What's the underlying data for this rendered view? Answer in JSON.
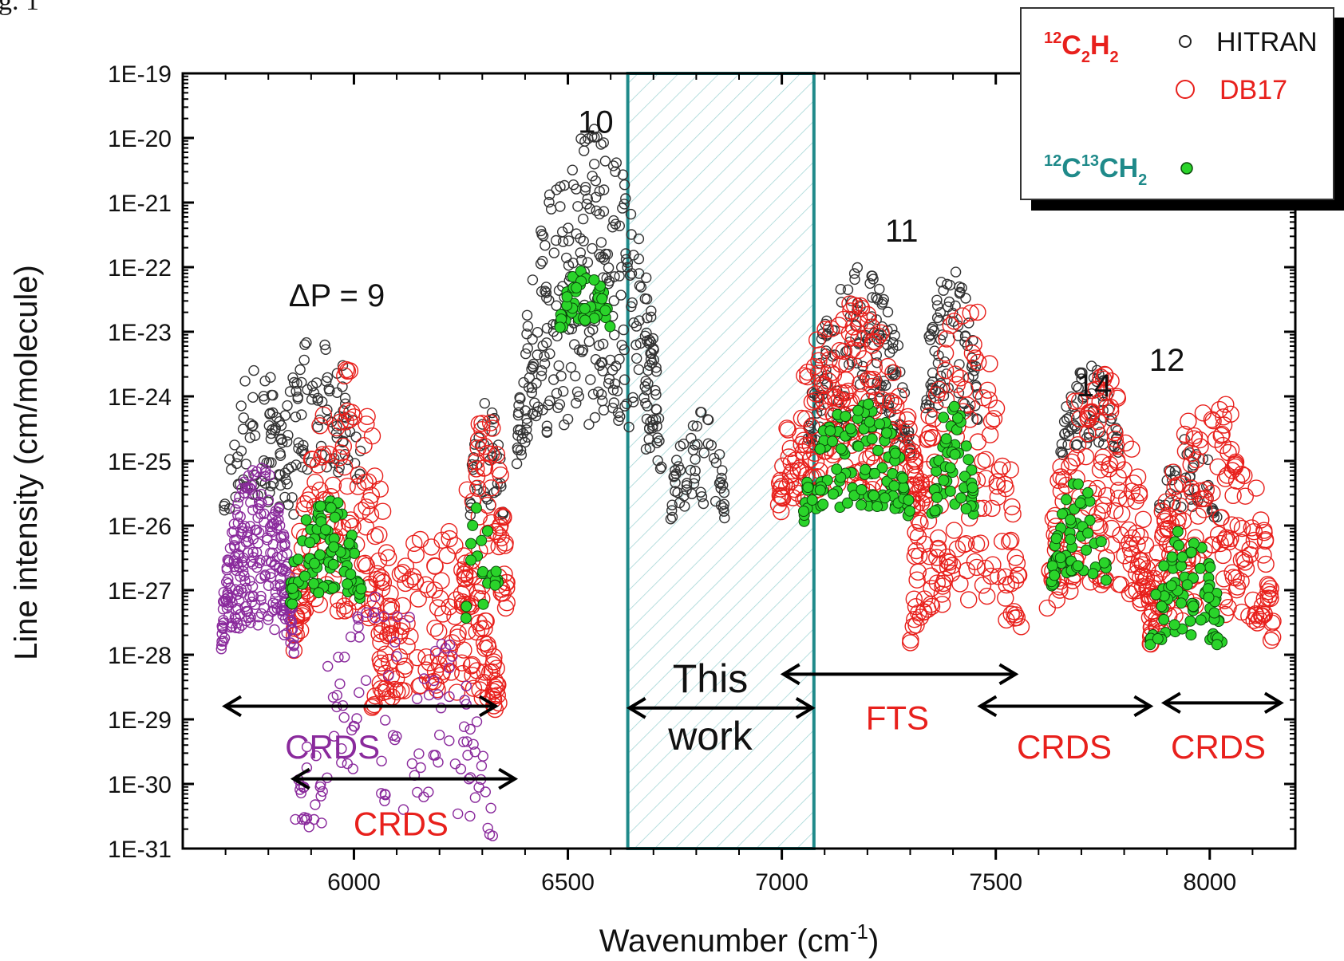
{
  "chart_data": {
    "type": "scatter",
    "header_text": "g. 1",
    "xlabel": "Wavenumber (cm",
    "xlabel_sup": "-1",
    "xlabel_close": ")",
    "ylabel": "Line intensity (cm/molecule)",
    "xlim": [
      5600,
      8200
    ],
    "ylim": [
      1e-31,
      1e-19
    ],
    "yscale": "log",
    "x_ticks": [
      6000,
      6500,
      7000,
      7500,
      8000
    ],
    "x_tick_labels": [
      "6000",
      "6500",
      "7000",
      "7500",
      "8000"
    ],
    "y_tick_labels": [
      "1E-19",
      "1E-20",
      "1E-21",
      "1E-22",
      "1E-23",
      "1E-24",
      "1E-25",
      "1E-26",
      "1E-27",
      "1E-28",
      "1E-29",
      "1E-30",
      "1E-31"
    ],
    "y_tick_values": [
      1e-19,
      1e-20,
      1e-21,
      1e-22,
      1e-23,
      1e-24,
      1e-25,
      1e-26,
      1e-27,
      1e-28,
      1e-29,
      1e-30,
      1e-31
    ],
    "legend": {
      "placement": "top-right",
      "groups": [
        {
          "molecule_base": "C",
          "molecule_parts": [
            {
              "sup": "12",
              "t": "C"
            },
            {
              "sub": "2",
              "t": "H"
            },
            {
              "sub": "2"
            }
          ],
          "entries": [
            {
              "label": "HITRAN",
              "color": "#222222",
              "marker": "open-circle-small"
            },
            {
              "label": "DB17",
              "color": "#e8201c",
              "marker": "open-circle"
            }
          ]
        },
        {
          "molecule_parts": [
            {
              "sup": "12",
              "t": "C"
            },
            {
              "sup": "13",
              "t": "CH"
            },
            {
              "sub": "2"
            }
          ],
          "entries": [
            {
              "label": "",
              "color": "#2ad42a",
              "marker": "filled-circle"
            }
          ]
        }
      ],
      "molecule1_label": "C2H2",
      "molecule2_label": "CCH2"
    },
    "series": [
      {
        "name": "HITRAN",
        "color": "#333333",
        "marker": "open",
        "clusters": [
          {
            "x0": 5695,
            "x1": 5860,
            "peak": 3e-24,
            "low": 1e-26,
            "n": 70
          },
          {
            "x0": 5820,
            "x1": 6020,
            "peak": 1e-23,
            "low": 3e-26,
            "n": 90
          },
          {
            "x0": 6270,
            "x1": 6350,
            "peak": 1e-24,
            "low": 1e-26,
            "n": 40
          },
          {
            "x0": 6380,
            "x1": 6720,
            "peak": 1.5e-20,
            "low": 5e-26,
            "n": 320
          },
          {
            "x0": 6740,
            "x1": 6870,
            "peak": 8e-25,
            "low": 1e-26,
            "n": 60
          },
          {
            "x0": 7060,
            "x1": 7300,
            "peak": 1e-22,
            "low": 1e-25,
            "n": 160
          },
          {
            "x0": 7330,
            "x1": 7460,
            "peak": 1e-22,
            "low": 3e-25,
            "n": 80
          },
          {
            "x0": 7650,
            "x1": 7790,
            "peak": 3e-24,
            "low": 1e-25,
            "n": 70
          },
          {
            "x0": 7880,
            "x1": 8020,
            "peak": 3e-25,
            "low": 1e-26,
            "n": 40
          }
        ]
      },
      {
        "name": "DB17",
        "color": "#e8201c",
        "marker": "open",
        "clusters": [
          {
            "x0": 5860,
            "x1": 6090,
            "peak": 3e-24,
            "low": 1e-28,
            "n": 150
          },
          {
            "x0": 6040,
            "x1": 6340,
            "peak": 1e-26,
            "low": 1e-29,
            "n": 150
          },
          {
            "x0": 6250,
            "x1": 6360,
            "peak": 1e-24,
            "low": 3e-28,
            "n": 60
          },
          {
            "x0": 6990,
            "x1": 7320,
            "peak": 3e-23,
            "low": 1e-26,
            "n": 220
          },
          {
            "x0": 7300,
            "x1": 7560,
            "peak": 3e-23,
            "low": 1e-28,
            "n": 160
          },
          {
            "x0": 7620,
            "x1": 7860,
            "peak": 3e-24,
            "low": 3e-28,
            "n": 160
          },
          {
            "x0": 7860,
            "x1": 8150,
            "peak": 1e-24,
            "low": 1e-28,
            "n": 200
          }
        ]
      },
      {
        "name": "CRDS",
        "color": "#8a2a9c",
        "marker": "open",
        "clusters": [
          {
            "x0": 5690,
            "x1": 5860,
            "peak": 1e-25,
            "low": 1e-28,
            "n": 260
          },
          {
            "x0": 5860,
            "x1": 6330,
            "peak": 1e-27,
            "low": 1e-31,
            "n": 120
          }
        ]
      },
      {
        "name": "13C isotopologue",
        "color": "#2ad42a",
        "marker": "filled",
        "clusters": [
          {
            "x0": 5850,
            "x1": 6020,
            "peak": 3e-26,
            "low": 5e-28,
            "n": 90
          },
          {
            "x0": 6260,
            "x1": 6340,
            "peak": 3e-26,
            "low": 3e-28,
            "n": 20
          },
          {
            "x0": 6480,
            "x1": 6600,
            "peak": 1e-22,
            "low": 1e-23,
            "n": 50
          },
          {
            "x0": 7050,
            "x1": 7300,
            "peak": 1e-24,
            "low": 1e-26,
            "n": 120
          },
          {
            "x0": 7350,
            "x1": 7450,
            "peak": 1e-24,
            "low": 1e-26,
            "n": 50
          },
          {
            "x0": 7630,
            "x1": 7760,
            "peak": 5e-26,
            "low": 1e-27,
            "n": 60
          },
          {
            "x0": 7860,
            "x1": 8030,
            "peak": 1e-26,
            "low": 1e-28,
            "n": 80
          }
        ]
      }
    ],
    "this_work_region": {
      "x0": 6640,
      "x1": 7075,
      "label_line1": "This",
      "label_line2": "work",
      "color": "#1f8a8a"
    },
    "band_labels": [
      {
        "text": "ΔP = 9",
        "x": 5960,
        "y": 2.5e-23
      },
      {
        "text": "10",
        "x": 6565,
        "y": 1.2e-20
      },
      {
        "text": "11",
        "x": 7280,
        "y": 2.5e-22
      },
      {
        "text": "14",
        "x": 7730,
        "y": 1e-24
      },
      {
        "text": "12",
        "x": 7900,
        "y": 2.5e-24
      }
    ],
    "range_annotations": [
      {
        "label": "CRDS",
        "color": "#8a2a9c",
        "x0": 5695,
        "x1": 6335,
        "y": 1.6e-29,
        "label_x": 5950,
        "label_y": 2.5e-30
      },
      {
        "label": "CRDS",
        "color": "#e8201c",
        "x0": 5855,
        "x1": 6380,
        "y": 1.2e-30,
        "label_x": 6110,
        "label_y": 1.6e-31
      },
      {
        "label": "This work",
        "color": "#111111",
        "x0": 6640,
        "x1": 7075,
        "y": 1.5e-29,
        "label_x": 0,
        "label_y": 0,
        "no_label": true
      },
      {
        "label": "FTS",
        "color": "#e8201c",
        "x0": 7000,
        "x1": 7550,
        "y": 5e-29,
        "label_x": 7270,
        "label_y": 7e-30
      },
      {
        "label": "CRDS",
        "color": "#e8201c",
        "x0": 7460,
        "x1": 7865,
        "y": 1.6e-29,
        "label_x": 7660,
        "label_y": 2.5e-30
      },
      {
        "label": "CRDS",
        "color": "#e8201c",
        "x0": 7890,
        "x1": 8170,
        "y": 1.8e-29,
        "label_x": 8020,
        "label_y": 2.5e-30
      }
    ]
  }
}
